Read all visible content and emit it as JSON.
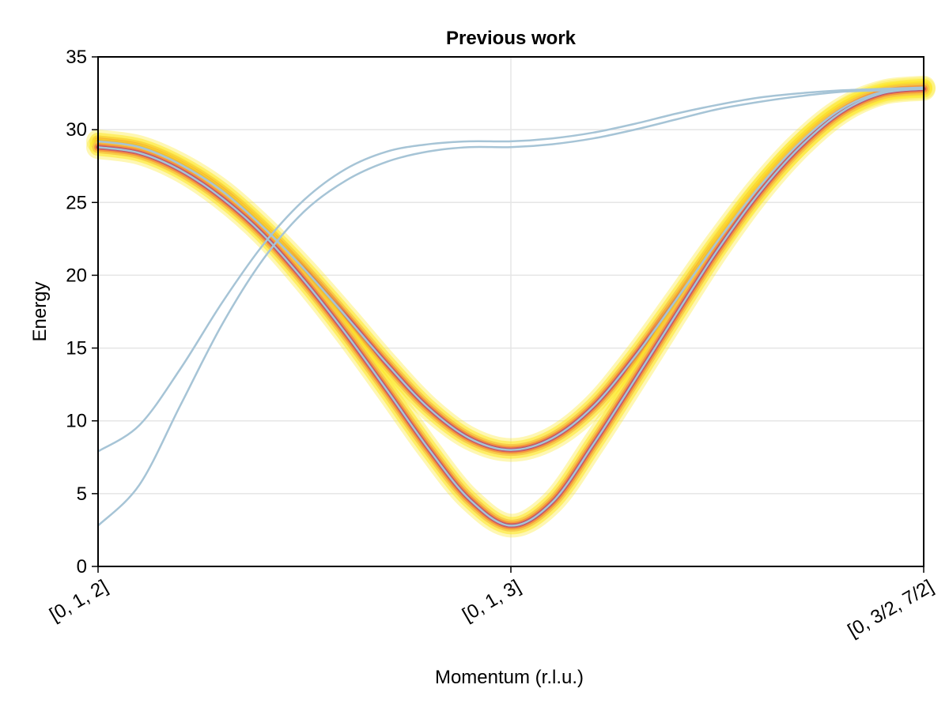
{
  "chart_data": {
    "type": "line",
    "title": "Previous work",
    "xlabel": "Momentum (r.l.u.)",
    "ylabel": "Energy",
    "ylim": [
      0,
      35
    ],
    "yticks": [
      0,
      5,
      10,
      15,
      20,
      25,
      30,
      35
    ],
    "xticks": [
      {
        "pos": 0,
        "label": "[0, 1, 2]"
      },
      {
        "pos": 1,
        "label": "[0, 1, 3]"
      },
      {
        "pos": 2,
        "label": "[0, 3/2, 7/2]"
      }
    ],
    "xlim": [
      0,
      2
    ],
    "grid": true,
    "series": [
      {
        "role": "intensity-band",
        "x": [
          0,
          0.1,
          0.2,
          0.3,
          0.4,
          0.5,
          0.6,
          0.7,
          0.8,
          0.9,
          1.0,
          1.1,
          1.2,
          1.3,
          1.4,
          1.5,
          1.6,
          1.7,
          1.8,
          1.9,
          2.0
        ],
        "y": [
          29.2,
          28.8,
          27.6,
          25.8,
          23.3,
          20.4,
          17.2,
          13.9,
          10.9,
          8.8,
          8.0,
          8.8,
          11.0,
          14.4,
          18.3,
          22.3,
          26.0,
          29.1,
          31.4,
          32.6,
          32.9
        ]
      },
      {
        "role": "intensity-band",
        "x": [
          0,
          0.1,
          0.2,
          0.3,
          0.4,
          0.5,
          0.6,
          0.7,
          0.8,
          0.9,
          1.0,
          1.1,
          1.2,
          1.3,
          1.4,
          1.5,
          1.6,
          1.7,
          1.8,
          1.9,
          2.0
        ],
        "y": [
          28.8,
          28.4,
          27.2,
          25.3,
          22.8,
          19.6,
          16.0,
          12.1,
          8.1,
          4.6,
          2.8,
          4.4,
          8.4,
          12.8,
          17.3,
          21.7,
          25.6,
          28.8,
          31.2,
          32.5,
          32.8
        ]
      },
      {
        "role": "dispersion",
        "x": [
          0,
          0.1,
          0.2,
          0.3,
          0.4,
          0.5,
          0.6,
          0.7,
          0.8,
          0.9,
          1.0,
          1.1,
          1.2,
          1.3,
          1.4,
          1.5,
          1.6,
          1.7,
          1.8,
          1.9,
          2.0
        ],
        "y": [
          7.9,
          9.7,
          13.6,
          18.1,
          22.1,
          25.2,
          27.3,
          28.5,
          29.0,
          29.2,
          29.2,
          29.4,
          29.8,
          30.4,
          31.1,
          31.7,
          32.2,
          32.5,
          32.7,
          32.8,
          32.9
        ]
      },
      {
        "role": "dispersion",
        "x": [
          0,
          0.1,
          0.2,
          0.3,
          0.4,
          0.5,
          0.6,
          0.7,
          0.8,
          0.9,
          1.0,
          1.1,
          1.2,
          1.3,
          1.4,
          1.5,
          1.6,
          1.7,
          1.8,
          1.9,
          2.0
        ],
        "y": [
          2.8,
          5.6,
          11.1,
          16.6,
          21.1,
          24.4,
          26.5,
          27.8,
          28.5,
          28.8,
          28.8,
          29.0,
          29.4,
          30.0,
          30.7,
          31.4,
          31.9,
          32.3,
          32.6,
          32.7,
          32.8
        ]
      }
    ],
    "colors": {
      "band_outer": "#fde725",
      "band_mid": "#f6c445",
      "band_orange": "#f58b3a",
      "band_magenta": "#b73779",
      "band_purple": "#51127c",
      "band_dark": "#1b0c41",
      "dispersion": "#a6c4d6",
      "grid": "#e5e5e5",
      "axis": "#000000"
    }
  }
}
